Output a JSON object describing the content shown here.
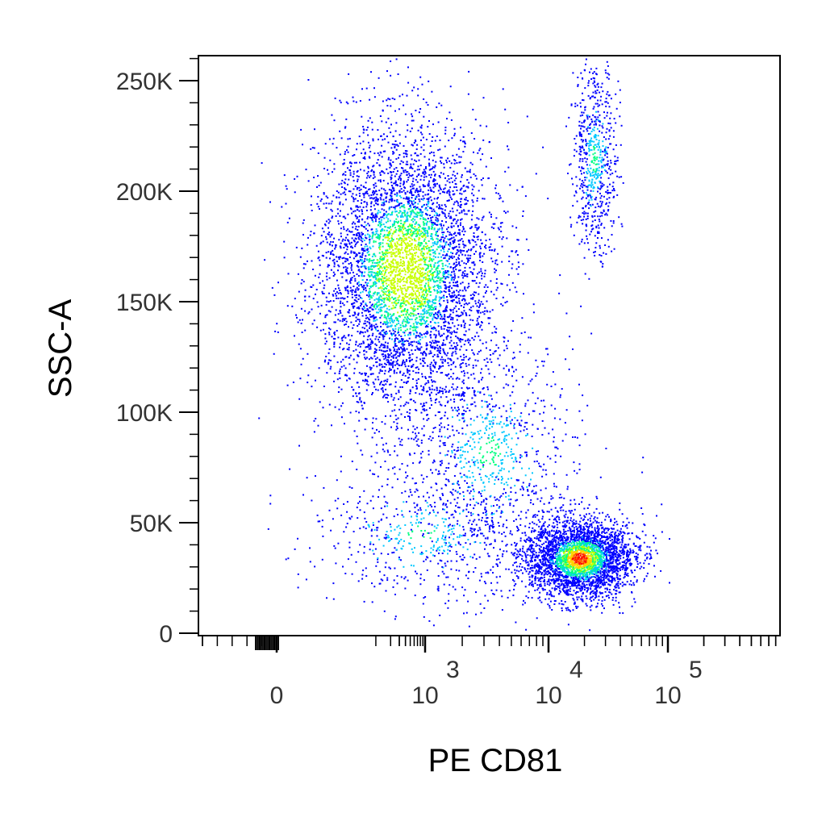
{
  "chart_data": {
    "type": "scatter",
    "subtype": "flow-cytometry-density-dot-plot",
    "xlabel": "PE CD81",
    "ylabel": "SSC-A",
    "x_scale": "biexponential",
    "ylim": [
      0,
      262144
    ],
    "y_ticks": [
      {
        "value": 0,
        "label": "0"
      },
      {
        "value": 50000,
        "label": "50K"
      },
      {
        "value": 100000,
        "label": "100K"
      },
      {
        "value": 150000,
        "label": "150K"
      },
      {
        "value": 200000,
        "label": "200K"
      },
      {
        "value": 250000,
        "label": "250K"
      }
    ],
    "x_ticks": [
      {
        "value": 0,
        "base": "0",
        "exponent": ""
      },
      {
        "value": 1000,
        "base": "10",
        "exponent": "3"
      },
      {
        "value": 10000,
        "base": "10",
        "exponent": "4"
      },
      {
        "value": 100000,
        "base": "10",
        "exponent": "5"
      }
    ],
    "density_colors": [
      "#0000ff",
      "#00c8ff",
      "#00ff80",
      "#c8ff00",
      "#ffd000",
      "#ff6000",
      "#ff0000"
    ],
    "populations": [
      {
        "x_center": 380,
        "x_spread": 0.35,
        "y_center": 165000,
        "y_spread": 32000,
        "count": 5200
      },
      {
        "x_center": 24000,
        "x_spread": 0.09,
        "y_center": 215000,
        "y_spread": 22000,
        "count": 650
      },
      {
        "x_center": 3200,
        "x_spread": 0.35,
        "y_center": 82000,
        "y_spread": 26000,
        "count": 950
      },
      {
        "x_center": 18000,
        "x_spread": 0.22,
        "y_center": 34000,
        "y_spread": 9000,
        "count": 3200
      },
      {
        "x_center": 900,
        "x_spread": 0.45,
        "y_center": 45000,
        "y_spread": 15000,
        "count": 550
      }
    ]
  }
}
